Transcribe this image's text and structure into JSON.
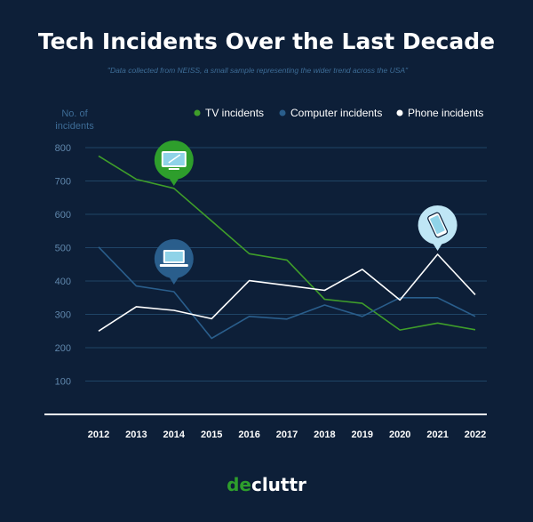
{
  "chart_data": {
    "type": "line",
    "title": "Tech Incidents Over the Last Decade",
    "subtitle": "\"Data collected from NEISS, a small sample representing the wider trend across the USA\"",
    "ylabel_line1": "No. of",
    "ylabel_line2": "incidents",
    "xlabel": "",
    "ylim": [
      0,
      800
    ],
    "yticks": [
      100,
      200,
      300,
      400,
      500,
      600,
      700,
      800
    ],
    "categories": [
      "2012",
      "2013",
      "2014",
      "2015",
      "2016",
      "2017",
      "2018",
      "2019",
      "2020",
      "2021",
      "2022"
    ],
    "series": [
      {
        "name": "TV incidents",
        "color": "#3f9e2a",
        "values": [
          775,
          705,
          678,
          580,
          482,
          463,
          345,
          333,
          253,
          274,
          254
        ],
        "icon": "tv-icon",
        "icon_index": 2
      },
      {
        "name": "Computer incidents",
        "color": "#2a5e8c",
        "values": [
          502,
          385,
          368,
          228,
          294,
          286,
          328,
          294,
          350,
          350,
          294
        ],
        "icon": "laptop-icon",
        "icon_index": 2
      },
      {
        "name": "Phone incidents",
        "color": "#ffffff",
        "values": [
          250,
          323,
          312,
          287,
          401,
          387,
          372,
          435,
          343,
          480,
          359
        ],
        "icon": "phone-icon",
        "icon_index": 9
      }
    ],
    "legend": "top-right",
    "grid": true
  },
  "brand": {
    "prefix": "de",
    "rest": "cluttr"
  },
  "colors": {
    "background": "#0d1f38",
    "grid": "#1f4466",
    "tv_badge": "#2e9e2c",
    "computer_badge": "#2a5e8c",
    "phone_badge": "#bfe6f5"
  }
}
